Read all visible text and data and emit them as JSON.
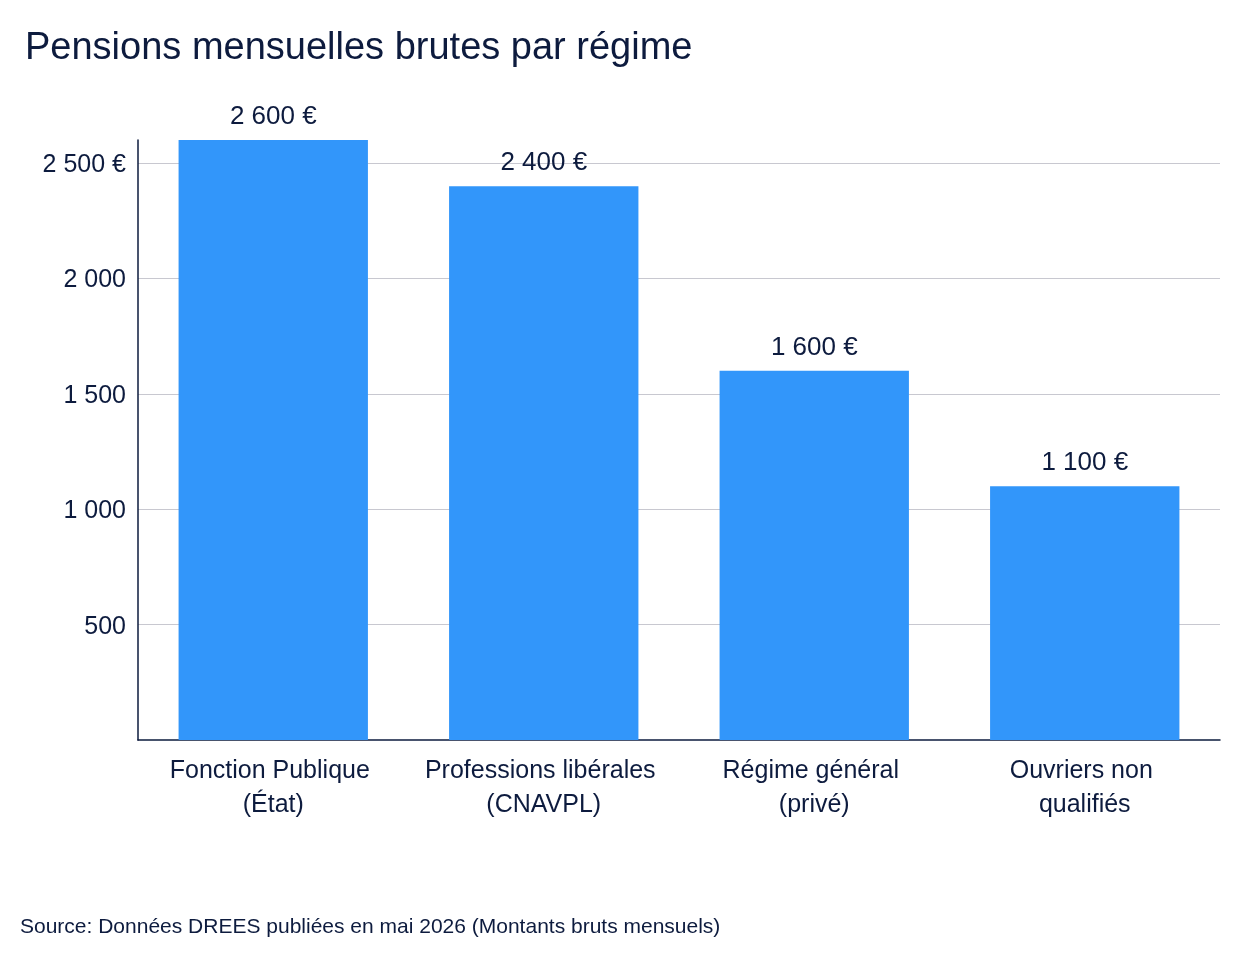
{
  "chart_data": {
    "type": "bar",
    "title": "Pensions mensuelles brutes par régime",
    "categories": [
      "Fonction Publique (État)",
      "Professions libérales (CNAVPL)",
      "Régime général (privé)",
      "Ouvriers non qualifiés"
    ],
    "values": [
      2600,
      2400,
      1600,
      1100
    ],
    "value_labels": [
      "2 600 €",
      "2 400 €",
      "1 600 €",
      "1 100 €"
    ],
    "color": "#3296fa",
    "ylim": [
      0,
      2600
    ],
    "yticks": [
      {
        "value": 500,
        "label": "500"
      },
      {
        "value": 1000,
        "label": "1 000"
      },
      {
        "value": 1500,
        "label": "1 500"
      },
      {
        "value": 2000,
        "label": "2 000"
      },
      {
        "value": 2500,
        "label": "2 500 €"
      }
    ],
    "grid": "y",
    "annotations": [
      "Source: Données DREES publiées en mai 2026 (Montants bruts mensuels)"
    ]
  }
}
